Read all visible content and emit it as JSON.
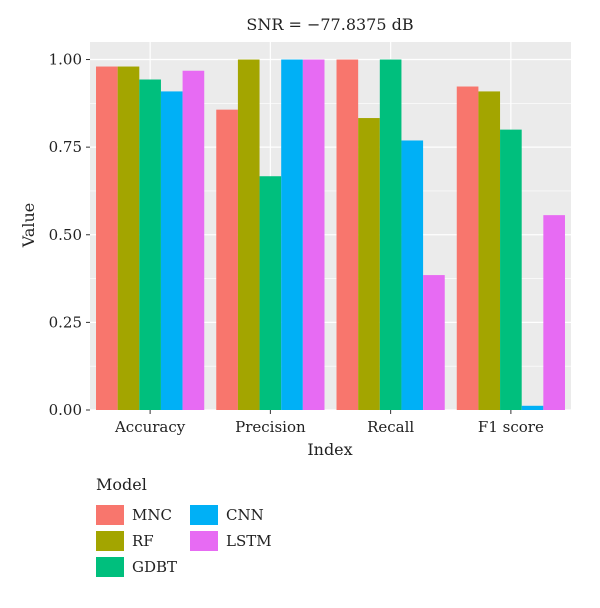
{
  "chart_data": {
    "type": "bar",
    "title": "SNR = −77.8375 dB",
    "xlabel": "Index",
    "ylabel": "Value",
    "ylim": [
      0,
      1.05
    ],
    "yticks": [
      "0.00",
      "0.25",
      "0.50",
      "0.75",
      "1.00"
    ],
    "categories": [
      "Accuracy",
      "Precision",
      "Recall",
      "F1 score"
    ],
    "series": [
      {
        "name": "MNC",
        "color": "#F8766D",
        "values": [
          0.98,
          0.857,
          1.0,
          0.923
        ]
      },
      {
        "name": "RF",
        "color": "#A3A500",
        "values": [
          0.98,
          1.0,
          0.833,
          0.909
        ]
      },
      {
        "name": "GDBT",
        "color": "#00BF7D",
        "values": [
          0.943,
          0.667,
          1.0,
          0.8
        ]
      },
      {
        "name": "CNN",
        "color": "#00B0F6",
        "values": [
          0.909,
          1.0,
          0.769,
          0.012
        ]
      },
      {
        "name": "LSTM",
        "color": "#E76BF3",
        "values": [
          0.968,
          1.0,
          0.385,
          0.556
        ]
      }
    ],
    "grid": true,
    "panel_background": "#EBEBEB",
    "legend_title": "Model",
    "legend_position": "bottom-left"
  }
}
